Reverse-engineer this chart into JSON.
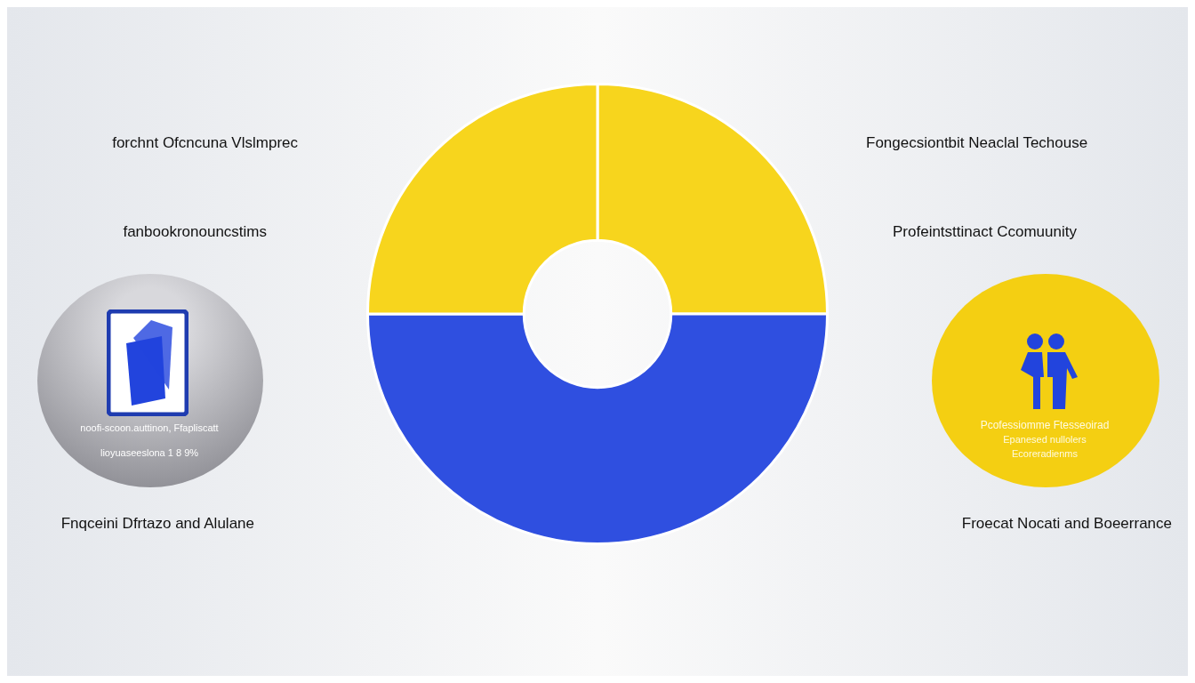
{
  "chart_data": {
    "type": "donut",
    "categories": [
      null,
      null,
      null
    ],
    "values": [
      25,
      50,
      25
    ],
    "colors": [
      "#f7d51d",
      "#2f4fe0",
      "#f7d51d"
    ],
    "annotations": [
      "forchnt Ofcncuna Vlslmprec",
      "fanbookronouncstims",
      "Fongecsiontbit Neaclal Techouse",
      "Profeintsttinact Ccomuunity",
      "Fnqceini Dfrtazo and Alulane",
      "Froecat Nocati and Boeerrance",
      "noofi-scoon.auttinon, Ffapliscatt",
      "lioyuaseeslona 1 8 9%",
      "Pcofessiomme Ftesseoirad",
      "Epanesed nullolers",
      "Ecoreradienms"
    ]
  }
}
